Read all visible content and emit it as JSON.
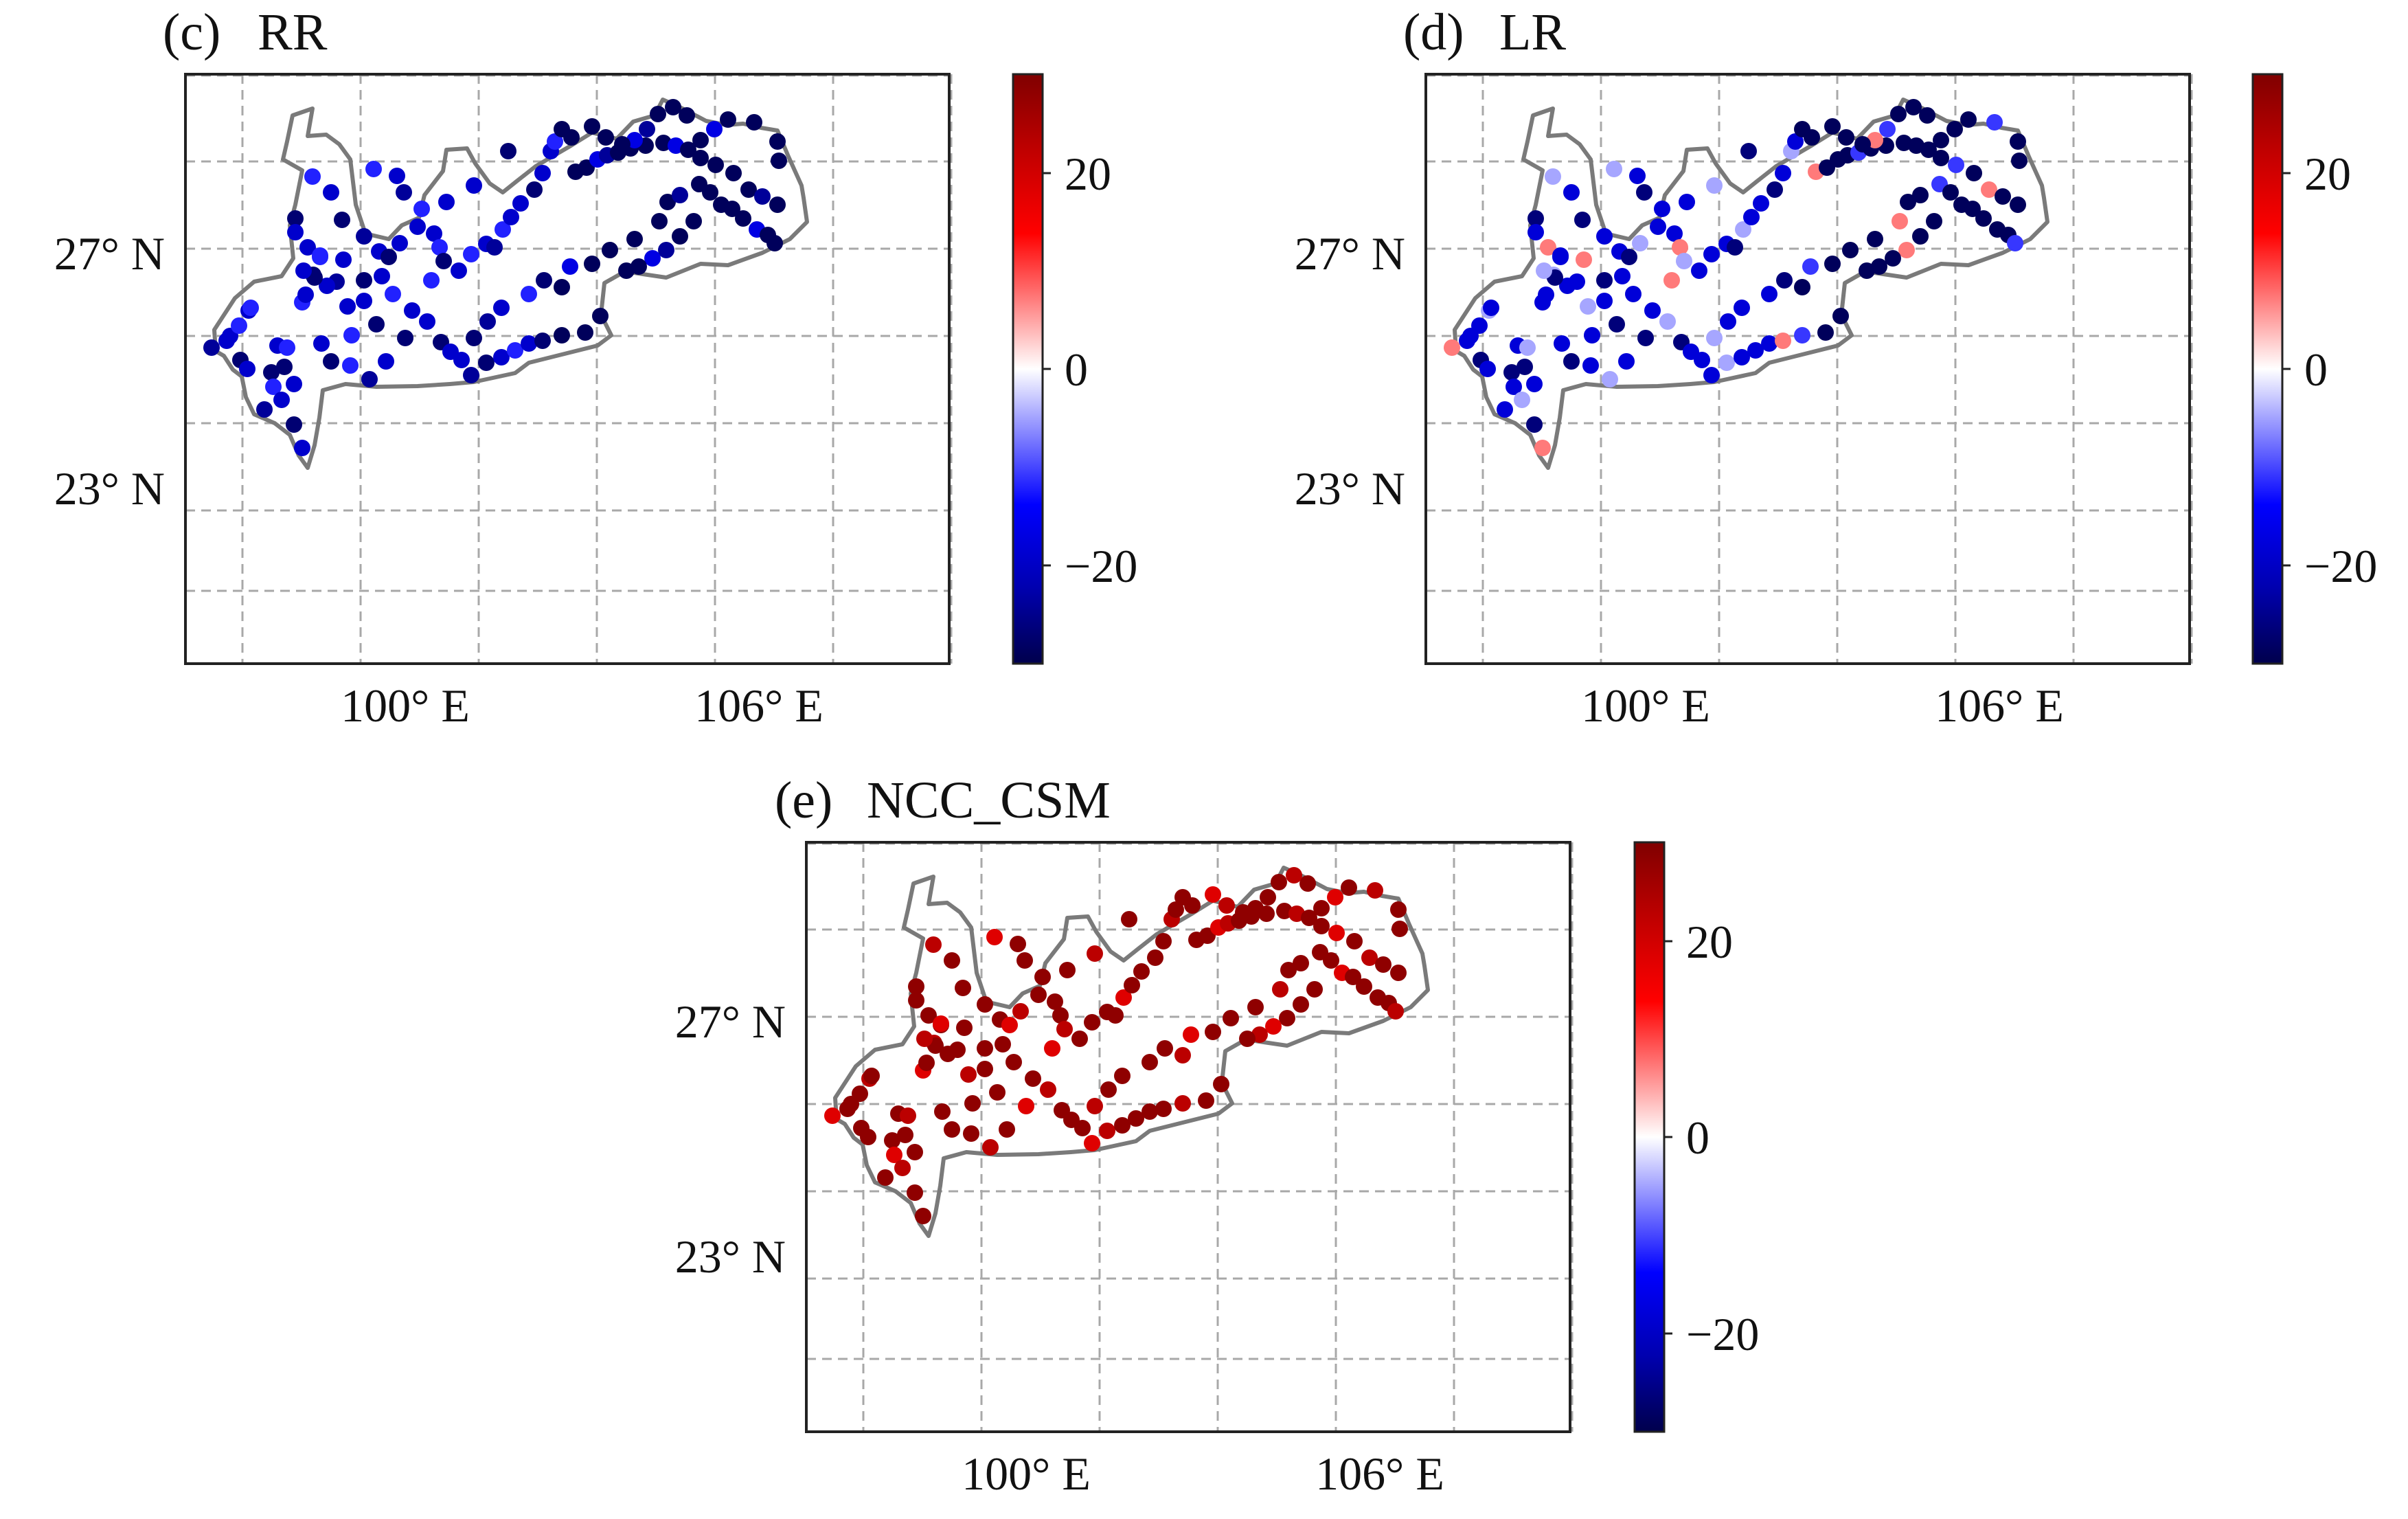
{
  "chart_data": [
    {
      "id": "c",
      "type": "scatter",
      "subplot": "(c)",
      "title": "RR",
      "xticks": [
        {
          "value": 100,
          "label": "100°  E"
        },
        {
          "value": 106,
          "label": "106°  E"
        }
      ],
      "yticks": [
        {
          "value": 27,
          "label": "27°  N"
        },
        {
          "value": 23,
          "label": "23°  N"
        }
      ],
      "xlim": [
        97,
        110
      ],
      "ylim": [
        20.0,
        30.0
      ],
      "colorbar": {
        "min": -30,
        "max": 30,
        "ticks": [
          20,
          0,
          -20
        ],
        "tick_labels": [
          "20",
          "0",
          "−20"
        ],
        "colormap": "seismic"
      },
      "pattern": "negative"
    },
    {
      "id": "d",
      "type": "scatter",
      "subplot": "(d)",
      "title": "LR",
      "xticks": [
        {
          "value": 100,
          "label": "100°  E"
        },
        {
          "value": 106,
          "label": "106°  E"
        }
      ],
      "yticks": [
        {
          "value": 27,
          "label": "27°  N"
        },
        {
          "value": 23,
          "label": "23°  N"
        }
      ],
      "xlim": [
        97,
        110
      ],
      "ylim": [
        20.0,
        30.0
      ],
      "colorbar": {
        "min": -30,
        "max": 30,
        "ticks": [
          20,
          0,
          -20
        ],
        "tick_labels": [
          "20",
          "0",
          "−20"
        ],
        "colormap": "seismic"
      },
      "pattern": "negative"
    },
    {
      "id": "e",
      "type": "scatter",
      "subplot": "(e)",
      "title": "NCC_CSM",
      "xticks": [
        {
          "value": 100,
          "label": "100°  E"
        },
        {
          "value": 106,
          "label": "106°  E"
        }
      ],
      "yticks": [
        {
          "value": 27,
          "label": "27°  N"
        },
        {
          "value": 23,
          "label": "23°  N"
        }
      ],
      "xlim": [
        97,
        110
      ],
      "ylim": [
        20.0,
        30.0
      ],
      "colorbar": {
        "min": -30,
        "max": 30,
        "ticks": [
          20,
          0,
          -20
        ],
        "tick_labels": [
          "20",
          "0",
          "−20"
        ],
        "colormap": "seismic"
      },
      "pattern": "positive"
    }
  ]
}
